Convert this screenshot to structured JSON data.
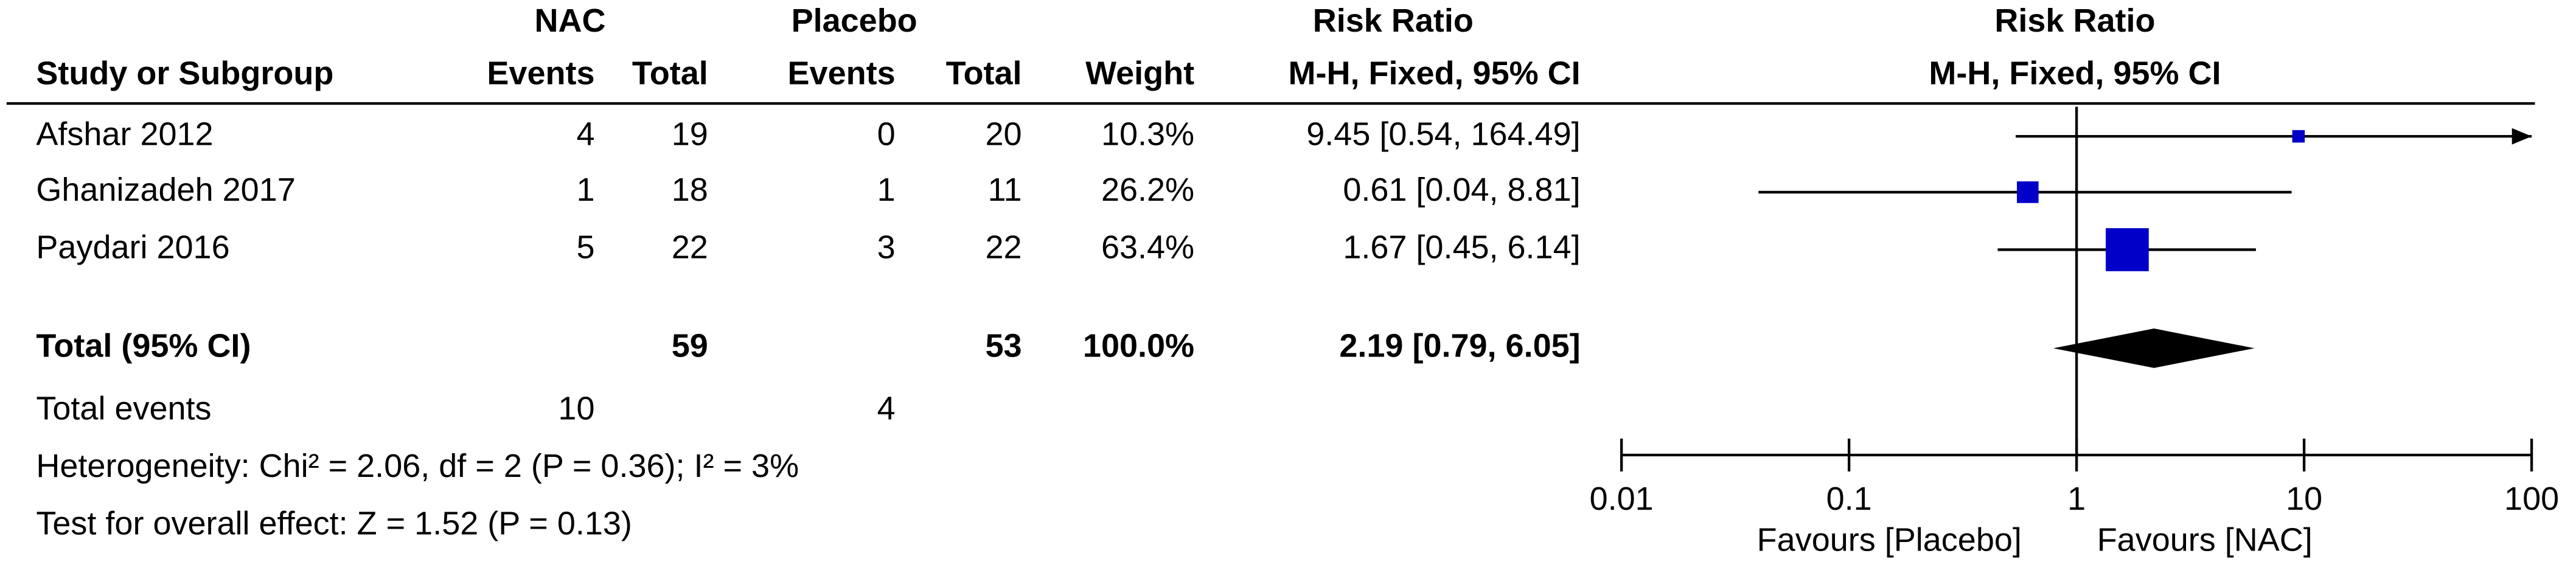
{
  "chart_data": {
    "type": "forest",
    "header": {
      "group1": "NAC",
      "group2": "Placebo",
      "effect_col": "Risk Ratio",
      "plot_title": "Risk Ratio"
    },
    "columns": [
      "Study or Subgroup",
      "Events",
      "Total",
      "Events",
      "Total",
      "Weight",
      "M-H, Fixed, 95% CI"
    ],
    "plot_subtitle": "M-H, Fixed, 95% CI",
    "studies": [
      {
        "name": "Afshar 2012",
        "events1": 4,
        "total1": 19,
        "events2": 0,
        "total2": 20,
        "weight": 10.3,
        "weight_label": "10.3%",
        "rr": 9.45,
        "lower": 0.54,
        "upper": 164.49,
        "ci_label": "9.45 [0.54, 164.49]"
      },
      {
        "name": "Ghanizadeh 2017",
        "events1": 1,
        "total1": 18,
        "events2": 1,
        "total2": 11,
        "weight": 26.2,
        "weight_label": "26.2%",
        "rr": 0.61,
        "lower": 0.04,
        "upper": 8.81,
        "ci_label": "0.61 [0.04, 8.81]"
      },
      {
        "name": "Paydari 2016",
        "events1": 5,
        "total1": 22,
        "events2": 3,
        "total2": 22,
        "weight": 63.4,
        "weight_label": "63.4%",
        "rr": 1.67,
        "lower": 0.45,
        "upper": 6.14,
        "ci_label": "1.67 [0.45, 6.14]"
      }
    ],
    "total": {
      "name": "Total (95% CI)",
      "total1": 59,
      "total2": 53,
      "weight": 100.0,
      "weight_label": "100.0%",
      "rr": 2.19,
      "lower": 0.79,
      "upper": 6.05,
      "ci_label": "2.19 [0.79, 6.05]"
    },
    "total_events": {
      "label": "Total events",
      "events1": 10,
      "events2": 4
    },
    "heterogeneity": "Heterogeneity: Chi² = 2.06, df = 2 (P = 0.36); I² = 3%",
    "overall_effect": "Test for overall effect: Z = 1.52 (P = 0.13)",
    "xlim": [
      0.01,
      100
    ],
    "xticks": [
      0.01,
      0.1,
      1,
      10,
      100
    ],
    "log_scale": true,
    "favours": [
      "Favours [Placebo]",
      "Favours [NAC]"
    ],
    "color": "#0000c8"
  }
}
